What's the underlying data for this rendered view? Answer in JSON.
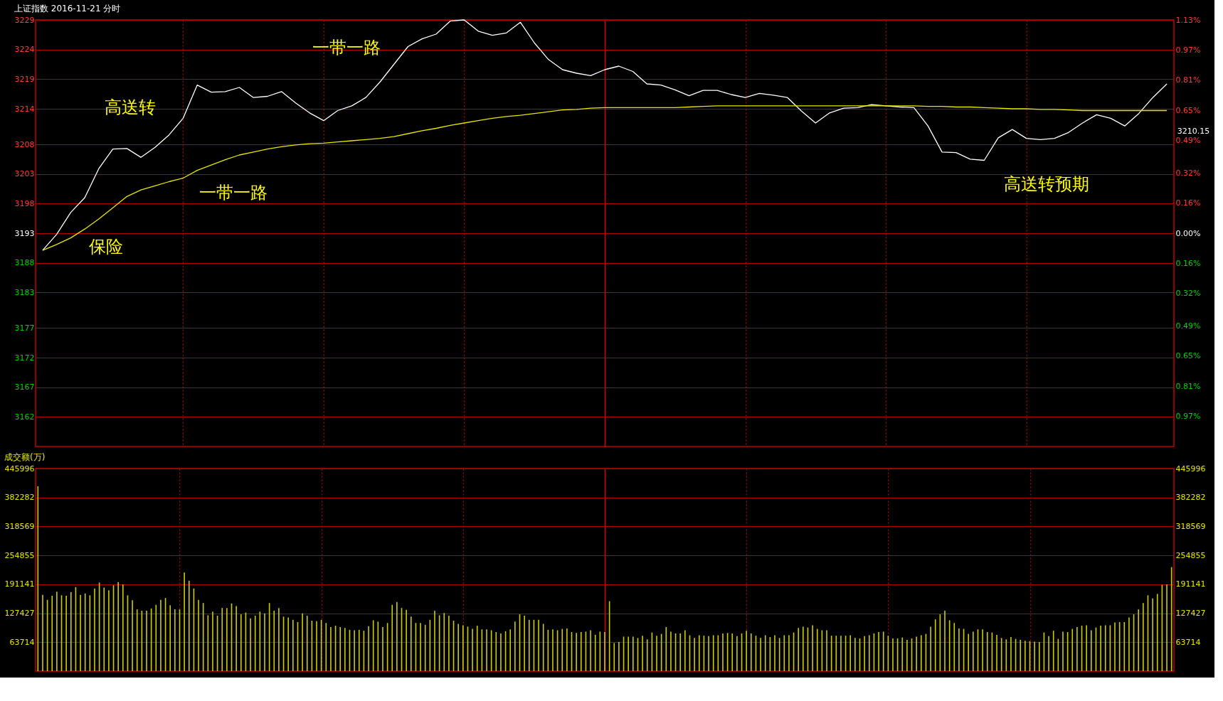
{
  "chart_data": [
    {
      "type": "line",
      "title": "上证指数   2016-11-21 分时",
      "categories": [
        null,
        null,
        null,
        null,
        null,
        null,
        null,
        null,
        null,
        null,
        null,
        null,
        null,
        null,
        null,
        null,
        null,
        null,
        null,
        null,
        null,
        null,
        null,
        null,
        null,
        null,
        null,
        null,
        null,
        null,
        null,
        null,
        null,
        null,
        null,
        null,
        null,
        null,
        null,
        null,
        null,
        null,
        null,
        null,
        null,
        null,
        null,
        null,
        null,
        null,
        null,
        null,
        null,
        null,
        null,
        null,
        null,
        null,
        null,
        null,
        null,
        null,
        null,
        null,
        null,
        null,
        null,
        null,
        null,
        null,
        null,
        null,
        null,
        null,
        null,
        null,
        null,
        null,
        null,
        null,
        null
      ],
      "ylim": [
        3157,
        3229
      ],
      "yticks": [
        3162,
        3167,
        3172,
        3177,
        3183,
        3188,
        3193,
        3198,
        3203,
        3208,
        3214,
        3219,
        3224,
        3229
      ],
      "y2lim": [
        -1.13,
        1.13
      ],
      "y2ticks": [
        {
          "value": -0.97,
          "label": "0.97%"
        },
        {
          "value": -0.81,
          "label": "0.81%"
        },
        {
          "value": -0.65,
          "label": "0.65%"
        },
        {
          "value": -0.49,
          "label": "0.49%"
        },
        {
          "value": -0.32,
          "label": "0.32%"
        },
        {
          "value": -0.16,
          "label": "0.16%"
        },
        {
          "value": 0,
          "label": "0.00%"
        },
        {
          "value": 0.16,
          "label": "0.16%"
        },
        {
          "value": 0.32,
          "label": "0.32%"
        },
        {
          "value": 0.49,
          "label": "0.49%"
        },
        {
          "value": 0.65,
          "label": "0.65%"
        },
        {
          "value": 0.81,
          "label": "0.81%"
        },
        {
          "value": 0.97,
          "label": "0.97%"
        },
        {
          "value": 1.13,
          "label": "1.13%"
        }
      ],
      "tick_labels": "y",
      "grid": true,
      "series": [
        {
          "color": "#ffffff",
          "values": [
            3190.1,
            3192.8,
            3196.5,
            3199.0,
            3203.9,
            3207.2,
            3207.3,
            3205.8,
            3207.5,
            3209.6,
            3212.4,
            3218.0,
            3216.8,
            3216.9,
            3217.6,
            3215.9,
            3216.1,
            3216.9,
            3215.0,
            3213.3,
            3212.0,
            3213.7,
            3214.5,
            3215.9,
            3218.5,
            3221.5,
            3224.5,
            3225.8,
            3226.6,
            3228.8,
            3229.0,
            3227.1,
            3226.4,
            3226.8,
            3228.6,
            3225.1,
            3222.3,
            3220.6,
            3220.0,
            3219.6,
            3220.6,
            3221.2,
            3220.3,
            3218.2,
            3218.0,
            3217.2,
            3216.2,
            3217.1,
            3217.1,
            3216.4,
            3215.9,
            3216.6,
            3216.3,
            3215.9,
            3213.6,
            3211.6,
            3213.3,
            3214.1,
            3214.2,
            3214.7,
            3214.5,
            3214.3,
            3214.2,
            3211.1,
            3206.7,
            3206.6,
            3205.5,
            3205.3,
            3209.1,
            3210.5,
            3209.0,
            3208.8,
            3209.0,
            3210.0,
            3211.6,
            3213.0,
            3212.4,
            3211.1,
            3213.2,
            3215.9,
            3218.2
          ]
        },
        {
          "color": "#e6e600",
          "values": [
            3190.1,
            3191.1,
            3192.2,
            3193.7,
            3195.4,
            3197.3,
            3199.2,
            3200.3,
            3201.0,
            3201.7,
            3202.3,
            3203.6,
            3204.5,
            3205.4,
            3206.2,
            3206.7,
            3207.2,
            3207.6,
            3207.9,
            3208.1,
            3208.2,
            3208.4,
            3208.6,
            3208.8,
            3209.0,
            3209.3,
            3209.8,
            3210.3,
            3210.7,
            3211.2,
            3211.6,
            3212.0,
            3212.4,
            3212.7,
            3212.9,
            3213.2,
            3213.5,
            3213.8,
            3213.9,
            3214.1,
            3214.2,
            3214.2,
            3214.2,
            3214.2,
            3214.2,
            3214.2,
            3214.3,
            3214.4,
            3214.5,
            3214.5,
            3214.5,
            3214.5,
            3214.5,
            3214.5,
            3214.5,
            3214.5,
            3214.5,
            3214.5,
            3214.5,
            3214.5,
            3214.5,
            3214.5,
            3214.5,
            3214.4,
            3214.4,
            3214.3,
            3214.3,
            3214.2,
            3214.1,
            3214.0,
            3214.0,
            3213.9,
            3213.9,
            3213.8,
            3213.7,
            3213.7,
            3213.7,
            3213.7,
            3213.7,
            3213.7,
            3213.7
          ]
        }
      ],
      "annotations": [
        "高送转",
        "一带一路",
        "一带一路",
        "保险",
        "高送转预期",
        "3210.15"
      ]
    },
    {
      "type": "bar",
      "title": "成交额(万)",
      "color": "#cccc00",
      "categories": [
        null,
        null,
        null,
        null,
        null,
        null,
        null,
        null,
        null,
        null,
        null,
        null,
        null,
        null,
        null,
        null,
        null,
        null,
        null,
        null,
        null,
        null,
        null,
        null,
        null,
        null,
        null,
        null,
        null,
        null,
        null,
        null,
        null,
        null,
        null,
        null,
        null,
        null,
        null,
        null,
        null,
        null,
        null,
        null,
        null,
        null,
        null,
        null,
        null,
        null,
        null,
        null,
        null,
        null,
        null,
        null,
        null,
        null,
        null,
        null,
        null,
        null,
        null,
        null,
        null,
        null,
        null,
        null,
        null,
        null,
        null,
        null,
        null,
        null,
        null,
        null,
        null,
        null,
        null,
        null,
        null,
        null,
        null,
        null,
        null,
        null,
        null,
        null,
        null,
        null,
        null,
        null,
        null,
        null,
        null,
        null,
        null,
        null,
        null,
        null,
        null,
        null,
        null,
        null,
        null,
        null,
        null,
        null,
        null,
        null,
        null,
        null,
        null,
        null,
        null,
        null,
        null,
        null,
        null,
        null,
        null,
        null,
        null,
        null,
        null,
        null,
        null,
        null,
        null,
        null,
        null,
        null,
        null,
        null,
        null,
        null,
        null,
        null,
        null,
        null,
        null,
        null,
        null,
        null,
        null,
        null,
        null,
        null,
        null,
        null,
        null,
        null,
        null,
        null,
        null,
        null,
        null,
        null,
        null,
        null,
        null,
        null,
        null,
        null,
        null,
        null,
        null,
        null,
        null,
        null,
        null,
        null,
        null,
        null,
        null,
        null,
        null,
        null,
        null,
        null,
        null,
        null,
        null,
        null,
        null,
        null,
        null,
        null,
        null,
        null,
        null,
        null,
        null,
        null,
        null,
        null,
        null,
        null,
        null,
        null,
        null,
        null,
        null,
        null,
        null,
        null,
        null,
        null,
        null,
        null,
        null,
        null,
        null,
        null,
        null,
        null,
        null,
        null,
        null,
        null,
        null,
        null,
        null,
        null,
        null,
        null,
        null,
        null,
        null,
        null,
        null,
        null,
        null,
        null,
        null,
        null,
        null,
        null,
        null,
        null,
        null
      ],
      "ylim": [
        0,
        445996
      ],
      "yticks": [
        63714,
        127427,
        191141,
        254855,
        318569,
        382282,
        445996
      ],
      "y2lim": [
        0,
        445996
      ],
      "y2ticks": [
        63714,
        127427,
        191141,
        254855,
        318569,
        382282,
        445996
      ],
      "tick_labels": "y",
      "grid": true,
      "values": [
        407000,
        168000,
        157000,
        166000,
        175000,
        167000,
        166000,
        174000,
        185000,
        168000,
        171000,
        167000,
        182000,
        195000,
        184000,
        178000,
        189000,
        196000,
        191000,
        167000,
        156000,
        136000,
        133000,
        133000,
        138000,
        146000,
        157000,
        161000,
        145000,
        136000,
        136000,
        217000,
        199000,
        182000,
        157000,
        150000,
        123000,
        131000,
        122000,
        139000,
        139000,
        149000,
        143000,
        125000,
        129000,
        116000,
        122000,
        131000,
        127000,
        150000,
        133000,
        139000,
        120000,
        118000,
        113000,
        108000,
        127000,
        122000,
        111000,
        110000,
        113000,
        106000,
        97000,
        100000,
        97000,
        95000,
        91000,
        90000,
        91000,
        89000,
        99000,
        112000,
        109000,
        97000,
        106000,
        146000,
        152000,
        139000,
        135000,
        120000,
        106000,
        106000,
        102000,
        113000,
        133000,
        123000,
        128000,
        122000,
        111000,
        104000,
        101000,
        98000,
        93000,
        100000,
        92000,
        92000,
        90000,
        86000,
        83000,
        88000,
        92000,
        109000,
        125000,
        122000,
        113000,
        113000,
        113000,
        104000,
        91000,
        92000,
        90000,
        93000,
        94000,
        86000,
        84000,
        86000,
        87000,
        90000,
        80000,
        87000,
        86000,
        154000,
        62000,
        64000,
        76000,
        76000,
        76000,
        73000,
        78000,
        70000,
        85000,
        78000,
        82000,
        97000,
        87000,
        83000,
        83000,
        90000,
        79000,
        73000,
        79000,
        78000,
        77000,
        79000,
        79000,
        83000,
        84000,
        83000,
        77000,
        83000,
        89000,
        83000,
        78000,
        73000,
        79000,
        75000,
        79000,
        73000,
        79000,
        79000,
        85000,
        95000,
        98000,
        96000,
        101000,
        93000,
        90000,
        90000,
        78000,
        78000,
        78000,
        78000,
        79000,
        73000,
        72000,
        77000,
        79000,
        83000,
        86000,
        87000,
        78000,
        72000,
        72000,
        74000,
        69000,
        72000,
        76000,
        79000,
        82000,
        98000,
        114000,
        125000,
        133000,
        112000,
        106000,
        94000,
        93000,
        82000,
        87000,
        92000,
        92000,
        86000,
        85000,
        80000,
        73000,
        70000,
        75000,
        71000,
        69000,
        67000,
        66000,
        65000,
        64000,
        85000,
        77000,
        89000,
        71000,
        87000,
        86000,
        93000,
        97000,
        100000,
        101000,
        90000,
        96000,
        100000,
        101000,
        101000,
        107000,
        108000,
        108000,
        118000,
        125000,
        136000,
        150000,
        167000,
        160000,
        170000,
        190000,
        191000,
        229000
      ]
    }
  ]
}
